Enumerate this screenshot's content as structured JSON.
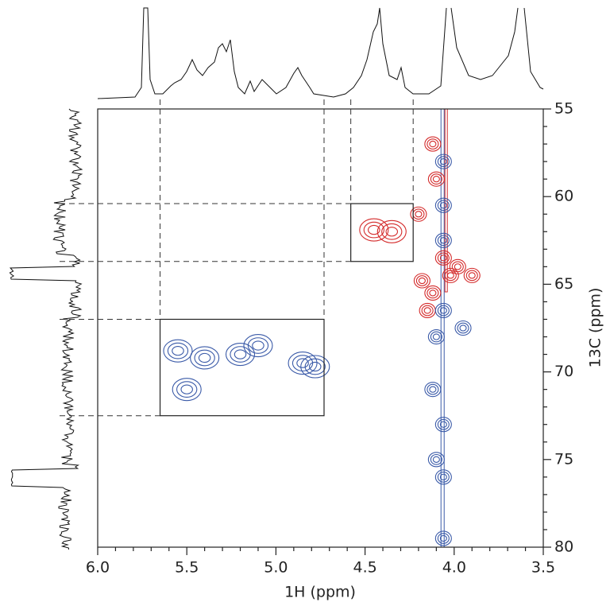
{
  "chart_data": {
    "type": "contour",
    "xlabel": "1H (ppm)",
    "ylabel": "13C (ppm)",
    "xlim": [
      6.0,
      3.5
    ],
    "ylim": [
      55,
      80
    ],
    "xticks": [
      {
        "value": 6.0,
        "label": "6.0"
      },
      5.5,
      {
        "value": 5.0,
        "label": "5.0"
      },
      4.5,
      {
        "value": 4.0,
        "label": "4.0"
      },
      3.5
    ],
    "yticks": [
      55,
      60,
      65,
      70,
      75,
      80
    ],
    "regions": [
      {
        "x": [
          4.58,
          4.23
        ],
        "y": [
          60.4,
          63.7
        ]
      },
      {
        "x": [
          5.65,
          4.73
        ],
        "y": [
          67.0,
          72.5
        ]
      }
    ],
    "series": [
      {
        "color": "#d42a2a",
        "x": [
          4.45,
          4.35,
          4.2,
          4.12,
          4.1,
          4.18,
          4.12,
          4.06,
          4.02,
          3.98,
          3.9,
          4.15
        ],
        "y": [
          61.9,
          62.0,
          61.0,
          57.0,
          59.0,
          64.8,
          65.5,
          63.5,
          64.5,
          64.0,
          64.5,
          66.5
        ]
      },
      {
        "color": "#3a5aa8",
        "x": [
          4.06,
          4.06,
          4.06,
          4.06,
          3.95,
          4.1,
          4.12,
          4.06,
          4.1,
          4.06,
          4.06,
          5.55,
          5.4,
          5.2,
          5.1,
          4.85,
          4.78,
          5.5
        ],
        "y": [
          58.0,
          60.5,
          62.5,
          66.5,
          67.5,
          68.0,
          71.0,
          73.0,
          75.0,
          76.0,
          79.5,
          68.8,
          69.2,
          69.0,
          68.5,
          69.5,
          69.7,
          71.0
        ]
      }
    ]
  }
}
